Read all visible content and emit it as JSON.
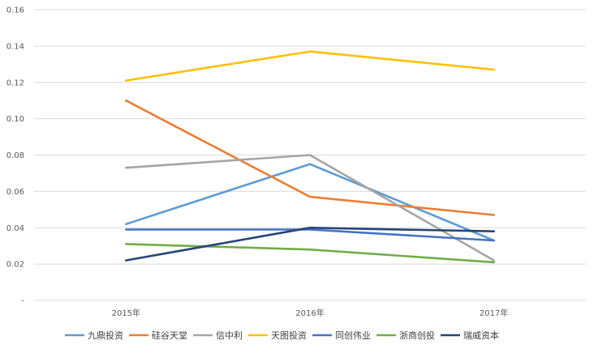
{
  "chart_data": {
    "type": "line",
    "title": "",
    "xlabel": "",
    "ylabel": "",
    "categories": [
      "2015年",
      "2016年",
      "2017年"
    ],
    "ylim": [
      0,
      0.16
    ],
    "yticks": [
      {
        "value": 0,
        "label": "-"
      },
      {
        "value": 0.02,
        "label": "0.02"
      },
      {
        "value": 0.04,
        "label": "0.04"
      },
      {
        "value": 0.06,
        "label": "0.06"
      },
      {
        "value": 0.08,
        "label": "0.08"
      },
      {
        "value": 0.1,
        "label": "0.10"
      },
      {
        "value": 0.12,
        "label": "0.12"
      },
      {
        "value": 0.14,
        "label": "0.14"
      },
      {
        "value": 0.16,
        "label": "0.16"
      }
    ],
    "grid": true,
    "legend_position": "bottom",
    "series": [
      {
        "name": "九鼎投资",
        "color": "#5B9BD5",
        "values": [
          0.042,
          0.075,
          0.033
        ]
      },
      {
        "name": "硅谷天堂",
        "color": "#ED7D31",
        "values": [
          0.11,
          0.057,
          0.047
        ]
      },
      {
        "name": "信中利",
        "color": "#A5A5A5",
        "values": [
          0.073,
          0.08,
          0.022
        ]
      },
      {
        "name": "天图投资",
        "color": "#FFC000",
        "values": [
          0.121,
          0.137,
          0.127
        ]
      },
      {
        "name": "同创伟业",
        "color": "#4472C4",
        "values": [
          0.039,
          0.039,
          0.033
        ]
      },
      {
        "name": "浙商创投",
        "color": "#70AD47",
        "values": [
          0.031,
          0.028,
          0.021
        ]
      },
      {
        "name": "瑞威资本",
        "color": "#264478",
        "values": [
          0.022,
          0.04,
          0.038
        ]
      }
    ]
  }
}
